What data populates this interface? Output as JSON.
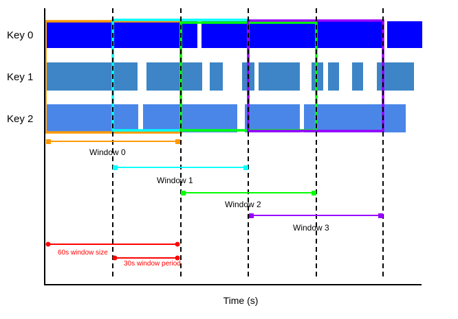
{
  "keys": [
    "Key 0",
    "Key 1",
    "Key 2"
  ],
  "windows": [
    {
      "label": "Window 0",
      "color": "#ff9900"
    },
    {
      "label": "Window 1",
      "color": "#00ffff"
    },
    {
      "label": "Window 2",
      "color": "#00ff00"
    },
    {
      "label": "Window 3",
      "color": "#9900ff"
    }
  ],
  "annotations": {
    "window_size": "60s window size",
    "window_period": "30s window period",
    "color": "#ff0000"
  },
  "xlabel": "Time (s)",
  "colors": {
    "key0": "#0000ff",
    "key1": "#3d85c6",
    "key2": "#4a86e8"
  }
}
